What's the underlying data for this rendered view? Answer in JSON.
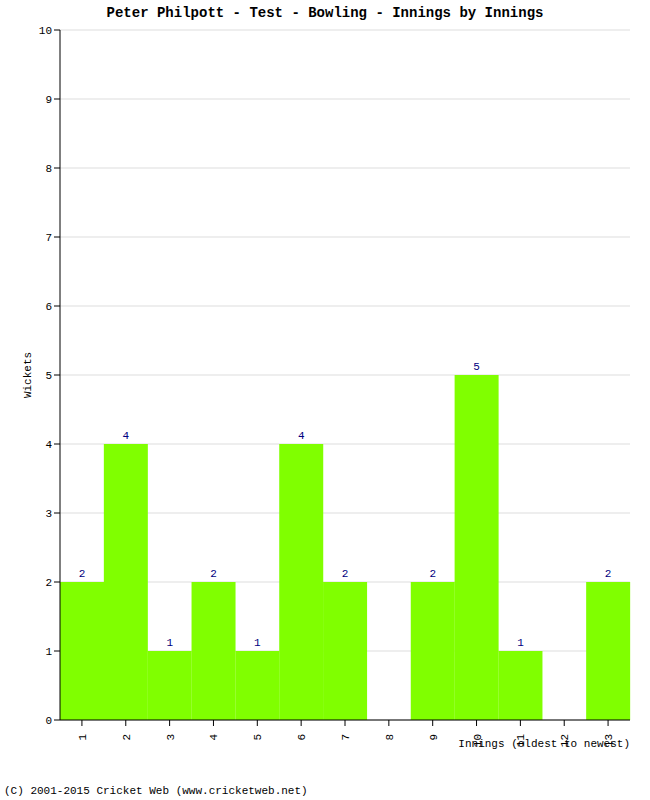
{
  "chart_data": {
    "type": "bar",
    "title": "Peter Philpott - Test - Bowling - Innings by Innings",
    "x_label": "Innings (oldest to newest)",
    "y_label": "Wickets",
    "annotation": "(C) 2001-2015 Cricket Web (www.cricketweb.net)",
    "categories": [
      "1",
      "2",
      "3",
      "4",
      "5",
      "6",
      "7",
      "8",
      "9",
      "10",
      "11",
      "12",
      "13"
    ],
    "values": [
      2,
      4,
      1,
      2,
      1,
      4,
      2,
      0,
      2,
      5,
      1,
      0,
      2
    ],
    "color": "#80ff00",
    "ylim": [
      0,
      10
    ],
    "yticks": [
      0,
      1,
      2,
      3,
      4,
      5,
      6,
      7,
      8,
      9,
      10
    ],
    "grid": true,
    "data_labels": true
  }
}
